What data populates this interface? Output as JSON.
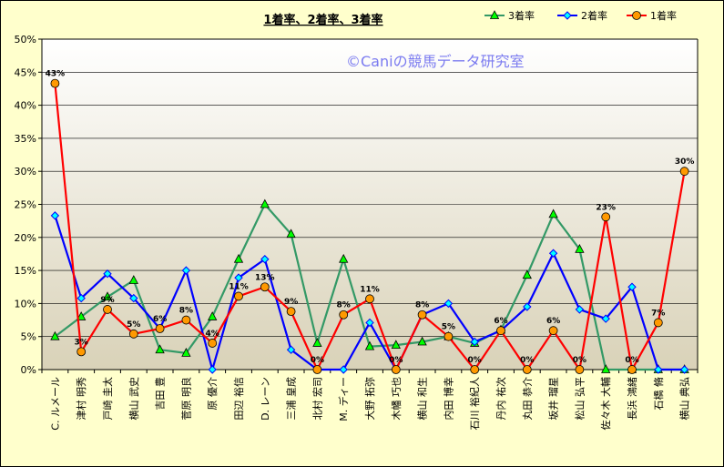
{
  "chart_data": {
    "type": "line",
    "title": "1着率、2着率、3着率",
    "watermark": "©Caniの競馬データ研究室",
    "ylim": [
      0,
      50
    ],
    "yticks": [
      0,
      5,
      10,
      15,
      20,
      25,
      30,
      35,
      40,
      45,
      50
    ],
    "ytick_labels": [
      "0%",
      "5%",
      "10%",
      "15%",
      "20%",
      "25%",
      "30%",
      "35%",
      "40%",
      "45%",
      "50%"
    ],
    "grid": "horizontal",
    "legend_position": "top-right",
    "categories": [
      "C. ルメール",
      "津村 明秀",
      "戸崎 圭太",
      "横山 武史",
      "吉田 豊",
      "菅原 明良",
      "原 優介",
      "田辺 裕信",
      "D. レーン",
      "三浦 皇成",
      "北村 宏司",
      "M. ディー",
      "大野 拓弥",
      "木幡 巧也",
      "横山 和生",
      "内田 博幸",
      "石川 裕紀人",
      "丹内 祐次",
      "丸田 恭介",
      "坂井 瑠星",
      "松山 弘平",
      "佐々木 大輔",
      "長浜 鴻緒",
      "石橋 脩",
      "横山 典弘"
    ],
    "series": [
      {
        "name": "3着率",
        "color": "#339966",
        "marker": "triangle",
        "values": [
          5,
          8,
          11,
          13.5,
          3,
          2.5,
          8,
          16.7,
          25,
          20.5,
          4,
          16.7,
          3.5,
          3.7,
          4.2,
          5,
          4,
          6,
          14.3,
          23.5,
          18.2,
          0,
          0,
          0,
          0
        ]
      },
      {
        "name": "2着率",
        "color": "#0000ff",
        "marker": "diamond",
        "values": [
          23.3,
          10.8,
          14.5,
          10.8,
          6.2,
          15,
          0,
          13.9,
          16.7,
          3,
          0,
          0,
          7.1,
          0,
          8.3,
          10,
          4.2,
          5.9,
          9.5,
          17.6,
          9.1,
          7.7,
          12.5,
          0,
          0
        ]
      },
      {
        "name": "1着率",
        "color": "#ff0000",
        "marker": "circle",
        "fill": "#ff9900",
        "values": [
          43.3,
          2.7,
          9.1,
          5.4,
          6.2,
          7.5,
          4,
          11.1,
          12.5,
          8.8,
          0,
          8.3,
          10.7,
          0,
          8.3,
          5,
          0,
          5.9,
          0,
          5.9,
          0,
          23.1,
          0,
          7.1,
          30
        ],
        "labels": [
          "43%",
          "3%",
          "9%",
          "5%",
          "6%",
          "8%",
          "4%",
          "11%",
          "13%",
          "9%",
          "0%",
          "8%",
          "11%",
          "0%",
          "8%",
          "5%",
          "0%",
          "6%",
          "0%",
          "6%",
          "0%",
          "23%",
          "0%",
          "7%",
          "30%"
        ]
      }
    ]
  }
}
